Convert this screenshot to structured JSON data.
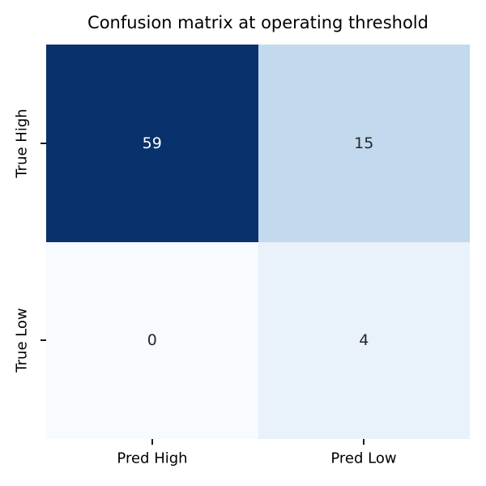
{
  "title": "Confusion matrix at operating threshold",
  "chart_data": {
    "type": "heatmap",
    "title": "Confusion matrix at operating threshold",
    "rows": [
      "True High",
      "True Low"
    ],
    "cols": [
      "Pred High",
      "Pred Low"
    ],
    "values": [
      [
        59,
        15
      ],
      [
        0,
        4
      ]
    ],
    "vmin": 0,
    "vmax": 59,
    "colormap": "Blues",
    "legend": "none",
    "grid": false,
    "cells": [
      {
        "row": "True High",
        "col": "Pred High",
        "value": "59",
        "bg": "#09316b",
        "fg": "#ffffff"
      },
      {
        "row": "True High",
        "col": "Pred Low",
        "value": "15",
        "bg": "#c3d9ed",
        "fg": "#262626"
      },
      {
        "row": "True Low",
        "col": "Pred High",
        "value": "0",
        "bg": "#f7fafe",
        "fg": "#262626"
      },
      {
        "row": "True Low",
        "col": "Pred Low",
        "value": "4",
        "bg": "#e9f1fb",
        "fg": "#262626"
      }
    ]
  }
}
